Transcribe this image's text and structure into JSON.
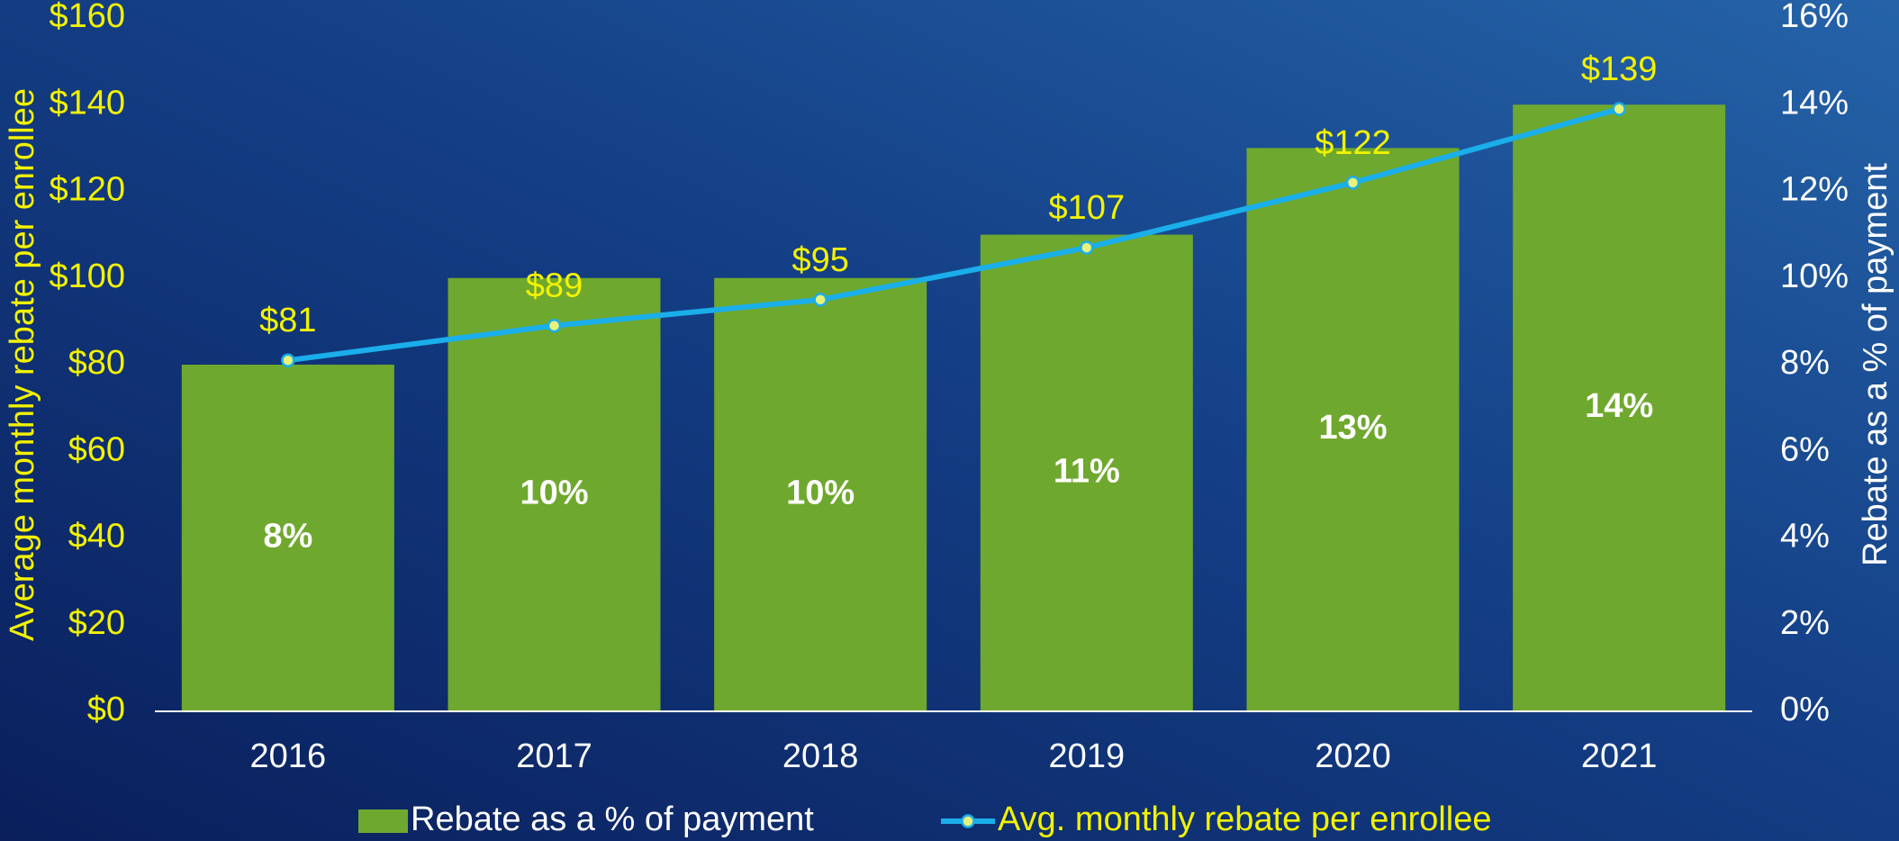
{
  "chart_data": {
    "type": "bar_line",
    "categories": [
      "2016",
      "2017",
      "2018",
      "2019",
      "2020",
      "2021"
    ],
    "series": [
      {
        "name": "Rebate as a % of payment",
        "type": "bar",
        "axis": "y2",
        "color": "#6fa82e",
        "values": [
          8,
          10,
          10,
          11,
          13,
          14
        ],
        "value_labels": [
          "8%",
          "10%",
          "10%",
          "11%",
          "13%",
          "14%"
        ]
      },
      {
        "name": "Avg. monthly rebate per enrollee",
        "type": "line",
        "axis": "y",
        "color": "#1aaeea",
        "values": [
          81,
          89,
          95,
          107,
          122,
          139
        ],
        "value_labels": [
          "$81",
          "$89",
          "$95",
          "$107",
          "$122",
          "$139"
        ]
      }
    ],
    "ylabel": "Average monthly rebate per enrollee",
    "y2label": "Rebate as a % of payment",
    "ylim": [
      0,
      160
    ],
    "yticks": [
      {
        "value": 0,
        "label": "$0"
      },
      {
        "value": 20,
        "label": "$20"
      },
      {
        "value": 40,
        "label": "$40"
      },
      {
        "value": 60,
        "label": "$60"
      },
      {
        "value": 80,
        "label": "$80"
      },
      {
        "value": 100,
        "label": "$100"
      },
      {
        "value": 120,
        "label": "$120"
      },
      {
        "value": 140,
        "label": "$140"
      },
      {
        "value": 160,
        "label": "$160"
      }
    ],
    "y2lim": [
      0,
      16
    ],
    "y2ticks": [
      {
        "value": 0,
        "label": "0%"
      },
      {
        "value": 2,
        "label": "2%"
      },
      {
        "value": 4,
        "label": "4%"
      },
      {
        "value": 6,
        "label": "6%"
      },
      {
        "value": 8,
        "label": "8%"
      },
      {
        "value": 10,
        "label": "10%"
      },
      {
        "value": 12,
        "label": "12%"
      },
      {
        "value": 14,
        "label": "14%"
      },
      {
        "value": 16,
        "label": "16%"
      }
    ],
    "legend": "bottom"
  }
}
